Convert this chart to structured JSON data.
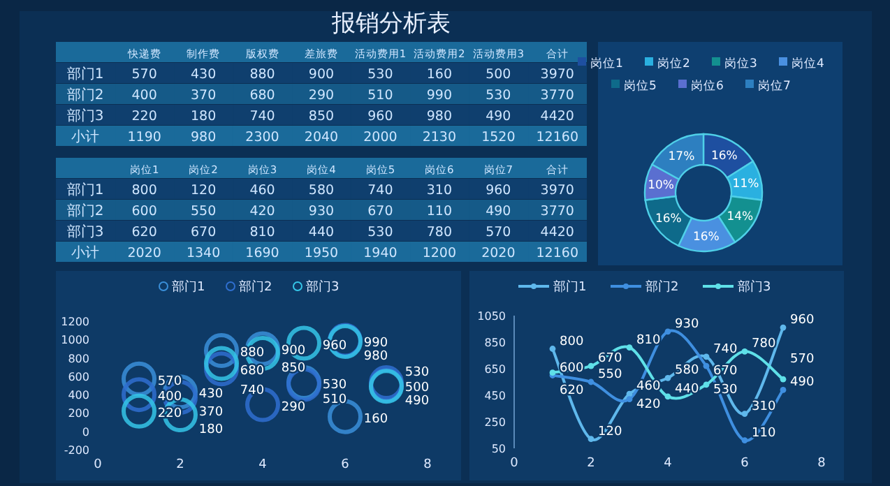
{
  "chart_data": [
    {
      "type": "heatmap",
      "title": "报销分析表",
      "data_labels": true,
      "categories": [
        "快递费",
        "制作费",
        "版权费",
        "差旅费",
        "活动费用1",
        "活动费用2",
        "活动费用3",
        "合计"
      ],
      "y_categories": [
        "部门1",
        "部门2",
        "部门3",
        "小计"
      ],
      "cells": [
        [
          570,
          430,
          880,
          900,
          530,
          160,
          500,
          3970
        ],
        [
          400,
          370,
          680,
          290,
          510,
          990,
          530,
          3770
        ],
        [
          220,
          180,
          740,
          850,
          960,
          980,
          490,
          4420
        ],
        [
          1190,
          980,
          2300,
          2040,
          2000,
          2130,
          1520,
          12160
        ]
      ]
    },
    {
      "type": "heatmap",
      "data_labels": true,
      "categories": [
        "岗位1",
        "岗位2",
        "岗位3",
        "岗位4",
        "岗位5",
        "岗位6",
        "岗位7",
        "合计"
      ],
      "y_categories": [
        "部门1",
        "部门2",
        "部门3",
        "小计"
      ],
      "cells": [
        [
          800,
          120,
          460,
          580,
          740,
          310,
          960,
          3970
        ],
        [
          600,
          550,
          420,
          930,
          670,
          110,
          490,
          3770
        ],
        [
          620,
          670,
          810,
          440,
          530,
          780,
          570,
          4420
        ],
        [
          2020,
          1340,
          1690,
          1950,
          1940,
          1200,
          2020,
          12160
        ]
      ]
    },
    {
      "type": "donut",
      "categories": [
        "岗位1",
        "岗位2",
        "岗位3",
        "岗位4",
        "岗位5",
        "岗位6",
        "岗位7"
      ],
      "values": [
        16,
        11,
        14,
        16,
        16,
        10,
        17
      ],
      "value_labels": [
        "16%",
        "11%",
        "14%",
        "16%",
        "16%",
        "10%",
        "17%"
      ],
      "colors": [
        "#1e4fa0",
        "#2ab0e0",
        "#139090",
        "#4a90e0",
        "#0e6a8a",
        "#5a6fd0",
        "#2d7fc0"
      ],
      "legend": "top"
    },
    {
      "type": "scatter",
      "x": [
        1,
        2,
        3,
        4,
        5,
        6,
        7
      ],
      "series": [
        {
          "name": "部门1",
          "color": "#3a8fd9",
          "values": [
            570,
            430,
            880,
            900,
            530,
            160,
            500
          ]
        },
        {
          "name": "部门2",
          "color": "#2f6fd0",
          "values": [
            400,
            370,
            680,
            290,
            510,
            990,
            530
          ]
        },
        {
          "name": "部门3",
          "color": "#35c6e8",
          "values": [
            220,
            180,
            740,
            850,
            960,
            980,
            490
          ]
        }
      ],
      "xlim": [
        0,
        8
      ],
      "xticks": [
        0,
        2,
        4,
        6,
        8
      ],
      "ylim": [
        -200,
        1200
      ],
      "yticks": [
        -200,
        0,
        200,
        400,
        600,
        800,
        1000,
        1200
      ],
      "legend": "top",
      "marker": "circle",
      "data_labels": true
    },
    {
      "type": "line",
      "x": [
        1,
        2,
        3,
        4,
        5,
        6,
        7
      ],
      "series": [
        {
          "name": "部门1",
          "color": "#5fb8ec",
          "values": [
            800,
            120,
            460,
            580,
            740,
            310,
            960
          ]
        },
        {
          "name": "部门2",
          "color": "#3f8fe0",
          "values": [
            600,
            550,
            420,
            930,
            670,
            110,
            490
          ]
        },
        {
          "name": "部门3",
          "color": "#5fe0e8",
          "values": [
            620,
            670,
            810,
            440,
            530,
            780,
            570
          ]
        }
      ],
      "xlim": [
        0,
        8
      ],
      "xticks": [
        0,
        2,
        4,
        6,
        8
      ],
      "ylim": [
        50,
        1050
      ],
      "yticks": [
        50,
        250,
        450,
        650,
        850,
        1050
      ],
      "legend": "top",
      "marker": "circle",
      "data_labels": true
    }
  ]
}
